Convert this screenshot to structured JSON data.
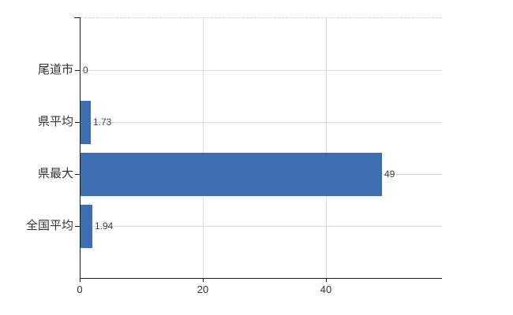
{
  "chart_data": {
    "type": "bar",
    "orientation": "horizontal",
    "title": "",
    "categories": [
      "尾道市",
      "県平均",
      "県最大",
      "全国平均"
    ],
    "values": [
      0,
      1.73,
      49,
      1.94
    ],
    "value_labels": [
      "0",
      "1.73",
      "49",
      "1.94"
    ],
    "x_ticks": [
      0,
      20,
      40
    ],
    "x_tick_labels": [
      "0",
      "20",
      "40"
    ],
    "xlim": [
      0,
      58.8
    ],
    "grid": "on",
    "legend": "none",
    "bar_color": "#3e6eb2",
    "gridline_color": "#dadada",
    "axis_color": "#1a1a1a"
  }
}
